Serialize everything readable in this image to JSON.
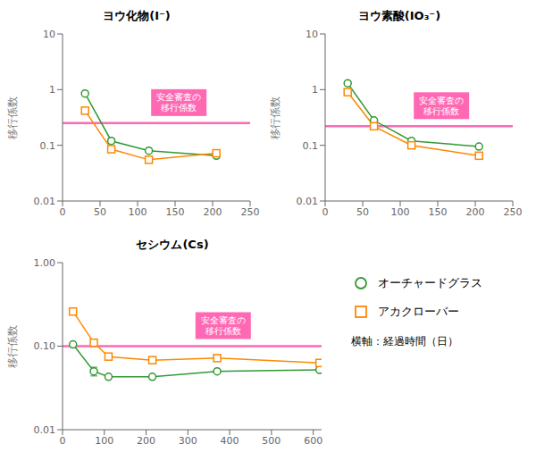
{
  "chart_data": [
    {
      "type": "line",
      "title": "ヨウ化物(I⁻)",
      "ylabel": "移行係数",
      "log": "y",
      "xlim": [
        0,
        250
      ],
      "xticks": [
        0,
        50,
        100,
        150,
        200,
        250
      ],
      "ylim": [
        0.01,
        10
      ],
      "yticks": [
        0.01,
        0.1,
        1,
        10
      ],
      "series": [
        {
          "name": "オーチャードグラス",
          "color": "#339933",
          "marker": "circle",
          "x": [
            30,
            65,
            115,
            205
          ],
          "values": [
            0.85,
            0.12,
            0.08,
            0.065
          ],
          "error": [
            null,
            0.0125,
            null,
            null
          ]
        },
        {
          "name": "アカクローバー",
          "color": "#ff8800",
          "marker": "square",
          "x": [
            30,
            65,
            115,
            205
          ],
          "values": [
            0.42,
            0.085,
            0.055,
            0.072
          ]
        }
      ],
      "reference_lines": [
        {
          "y": 0.25,
          "color": "#ff69b4",
          "label": "安全審査の\n移行係数"
        }
      ]
    },
    {
      "type": "line",
      "title": "ヨウ素酸(IO₃⁻)",
      "ylabel": "移行係数",
      "log": "y",
      "xlim": [
        0,
        250
      ],
      "xticks": [
        0,
        50,
        100,
        150,
        200,
        250
      ],
      "ylim": [
        0.01,
        10
      ],
      "yticks": [
        0.01,
        0.1,
        1,
        10
      ],
      "series": [
        {
          "name": "オーチャードグラス",
          "color": "#339933",
          "marker": "circle",
          "x": [
            30,
            65,
            115,
            205
          ],
          "values": [
            1.3,
            0.28,
            0.12,
            0.095
          ]
        },
        {
          "name": "アカクローバー",
          "color": "#ff8800",
          "marker": "square",
          "x": [
            30,
            65,
            115,
            205
          ],
          "values": [
            0.9,
            0.22,
            0.1,
            0.065
          ]
        }
      ],
      "reference_lines": [
        {
          "y": 0.22,
          "color": "#ff69b4",
          "label": "安全審査の\n移行係数"
        }
      ]
    },
    {
      "type": "line",
      "title": "セシウム(Cs)",
      "ylabel": "移行係数",
      "xlabel": "横軸：経過時間（日）",
      "log": "y",
      "xlim": [
        0,
        620
      ],
      "xticks": [
        0,
        100,
        200,
        300,
        400,
        500,
        600
      ],
      "ylim": [
        0.01,
        1
      ],
      "yticks": [
        0.01,
        {
          "value": 0.1,
          "label": "0.10"
        },
        {
          "value": 1,
          "label": "1.00"
        }
      ],
      "series": [
        {
          "name": "オーチャードグラス",
          "color": "#339933",
          "marker": "circle",
          "x": [
            25,
            75,
            110,
            215,
            370,
            615
          ],
          "values": [
            0.105,
            0.05,
            0.043,
            0.043,
            0.05,
            0.052
          ],
          "error": [
            null,
            0.006,
            null,
            null,
            null,
            null
          ]
        },
        {
          "name": "アカクローバー",
          "color": "#ff8800",
          "marker": "square",
          "x": [
            25,
            75,
            110,
            215,
            370,
            615
          ],
          "values": [
            0.26,
            0.11,
            0.075,
            0.068,
            0.072,
            0.063
          ]
        }
      ],
      "reference_lines": [
        {
          "y": 0.1,
          "color": "#ff69b4",
          "label": "安全審査の\n移行係数"
        }
      ]
    }
  ]
}
